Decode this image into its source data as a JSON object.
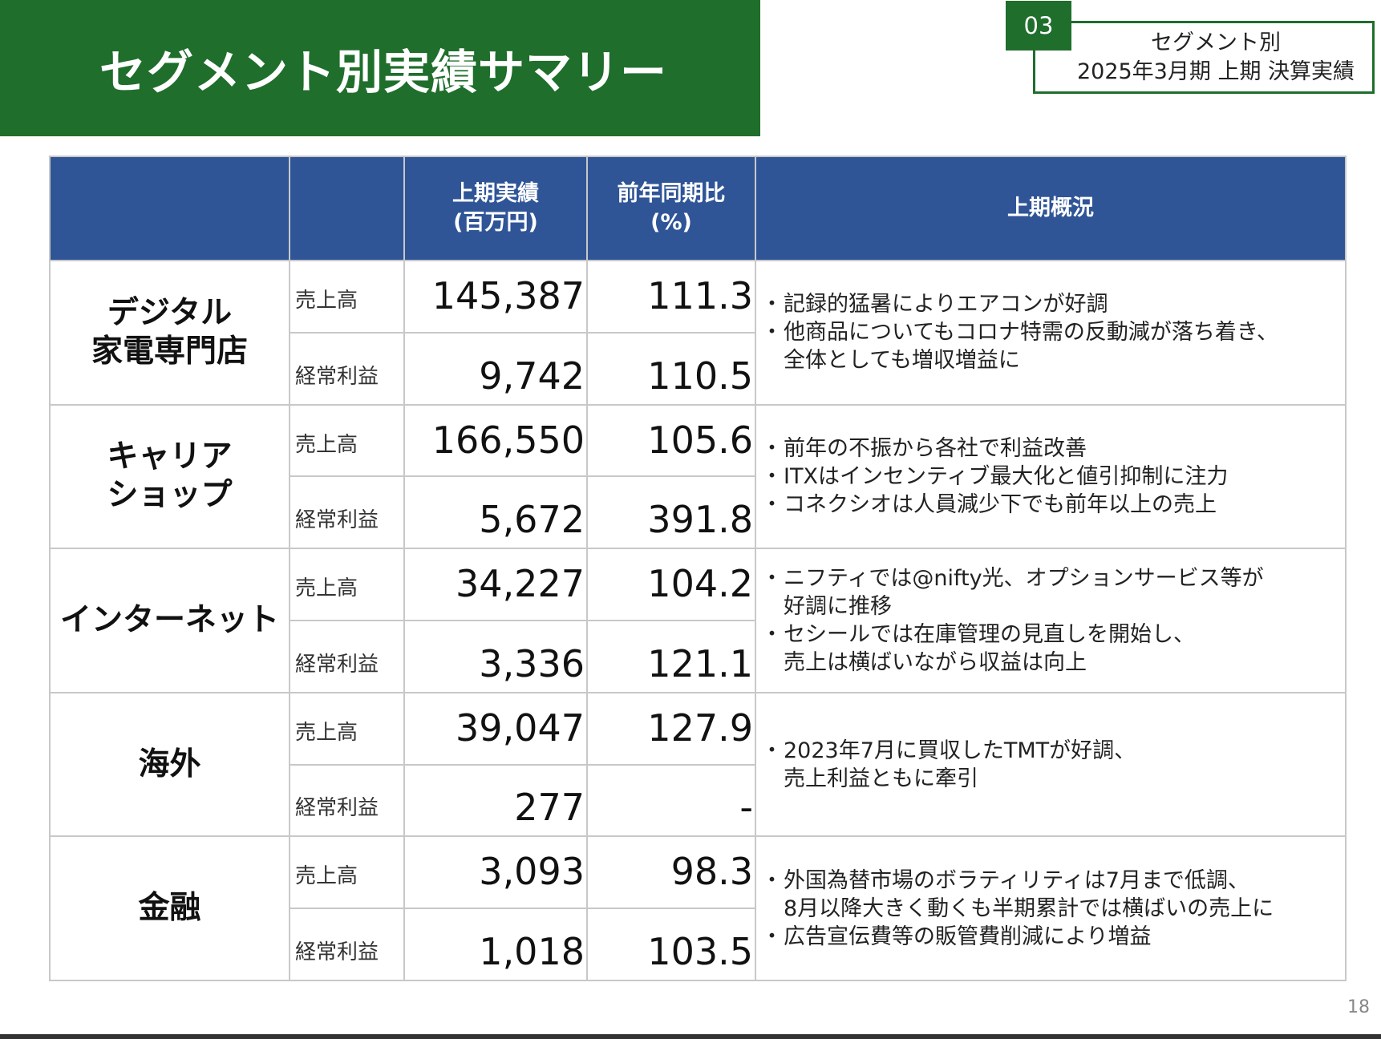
{
  "header": {
    "title": "セグメント別実績サマリー",
    "section_number": "03",
    "section_line1": "セグメント別",
    "section_line2": "2025年3月期  上期 決算実績"
  },
  "table": {
    "headers": {
      "col3_line1": "上期実績",
      "col3_line2": "(百万円)",
      "col4_line1": "前年同期比",
      "col4_line2": "(%)",
      "col5": "上期概況"
    },
    "segments": [
      {
        "name_lines": [
          "デジタル",
          "家電専門店"
        ],
        "sales_label": "売上高",
        "sales": "145,387",
        "sales_yoy": "111.3",
        "profit_label": "経常利益",
        "profit": "9,742",
        "profit_yoy": "110.5",
        "notes": [
          {
            "lines": [
              "記録的猛暑によりエアコンが好調"
            ]
          },
          {
            "lines": [
              "他商品についてもコロナ特需の反動減が落ち着き、",
              "全体としても増収増益に"
            ]
          }
        ]
      },
      {
        "name_lines": [
          "キャリア",
          "ショップ"
        ],
        "sales_label": "売上高",
        "sales": "166,550",
        "sales_yoy": "105.6",
        "profit_label": "経常利益",
        "profit": "5,672",
        "profit_yoy": "391.8",
        "notes": [
          {
            "lines": [
              "前年の不振から各社で利益改善"
            ]
          },
          {
            "lines": [
              "ITXはインセンティブ最大化と値引抑制に注力"
            ]
          },
          {
            "lines": [
              "コネクシオは人員減少下でも前年以上の売上"
            ]
          }
        ]
      },
      {
        "name_lines": [
          "インターネット"
        ],
        "sales_label": "売上高",
        "sales": "34,227",
        "sales_yoy": "104.2",
        "profit_label": "経常利益",
        "profit": "3,336",
        "profit_yoy": "121.1",
        "notes": [
          {
            "lines": [
              "ニフティでは@nifty光、オプションサービス等が",
              "好調に推移"
            ]
          },
          {
            "lines": [
              "セシールでは在庫管理の見直しを開始し、",
              "売上は横ばいながら収益は向上"
            ]
          }
        ]
      },
      {
        "name_lines": [
          "海外"
        ],
        "sales_label": "売上高",
        "sales": "39,047",
        "sales_yoy": "127.9",
        "profit_label": "経常利益",
        "profit": "277",
        "profit_yoy": "-",
        "notes": [
          {
            "lines": [
              "2023年7月に買収したTMTが好調、",
              "売上利益ともに牽引"
            ]
          }
        ]
      },
      {
        "name_lines": [
          "金融"
        ],
        "sales_label": "売上高",
        "sales": "3,093",
        "sales_yoy": "98.3",
        "profit_label": "経常利益",
        "profit": "1,018",
        "profit_yoy": "103.5",
        "notes": [
          {
            "lines": [
              "外国為替市場のボラティリティは7月まで低調、",
              "8月以降大きく動くも半期累計では横ばいの売上に"
            ]
          },
          {
            "lines": [
              "広告宣伝費等の販管費削減により増益"
            ]
          }
        ]
      }
    ]
  },
  "footer": {
    "page_number": "18"
  },
  "colors": {
    "brand_green": "#1f6e2c",
    "header_blue": "#2f5597"
  }
}
